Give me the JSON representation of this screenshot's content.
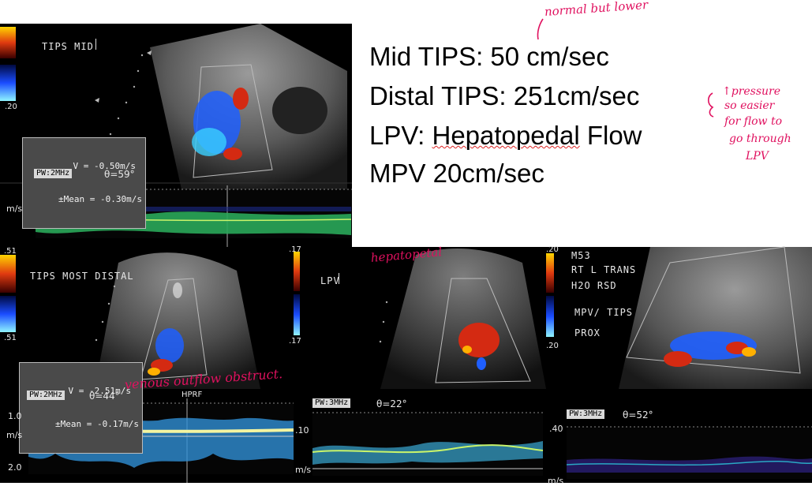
{
  "colors": {
    "annotation": "#e0115f",
    "doppler_red": "#d42a12",
    "doppler_blue": "#1f5fff",
    "spectral": "#41d46b"
  },
  "panel_top_left": {
    "label": "TIPS MID",
    "scale_bottom": ".20",
    "readout_v": "V = -0.50m/s",
    "readout_mean": "±Mean = -0.30m/s",
    "pw_tag": "PW:2MHz",
    "theta": "θ=59°",
    "axis_unit": "m/s"
  },
  "text_panel": {
    "line1": "Mid TIPS:  50 cm/sec",
    "line2": "Distal TIPS: 251cm/sec",
    "line3_prefix": "LPV: ",
    "line3_underlined": "Hepatopedal",
    "line3_suffix": " Flow",
    "line4": "MPV 20cm/sec"
  },
  "annotations": {
    "normal": "normal but lower",
    "pressure_1": "↑pressure",
    "pressure_2": "so easier",
    "pressure_3": "for flow to",
    "pressure_4": "go through",
    "pressure_5": "LPV",
    "hepatopetal": "hepatopetal",
    "venous": "venous outflow obstruct."
  },
  "panel_bottom_left": {
    "label": "TIPS MOST DISTAL",
    "scale_top": ".51",
    "scale_bottom": ".51",
    "readout_v": "V = -2.51m/s",
    "readout_mean": "±Mean = -0.17m/s",
    "pw_tag": "PW:2MHz",
    "theta": "θ=44°",
    "hprf": "HPRF",
    "axis_top": "1.0",
    "axis_unit": "m/s",
    "axis_bottom": "2.0"
  },
  "panel_bottom_mid": {
    "label": "LPV",
    "scale_top": ".17",
    "scale_bottom": ".17",
    "pw_tag": "PW:3MHz",
    "theta": "θ=22°",
    "axis_top": ".10",
    "axis_unit": "m/s"
  },
  "panel_bottom_right": {
    "scale_top": ".20",
    "scale_bottom": ".20",
    "label_lines": [
      "M53",
      "RT L TRANS",
      "H2O RSD",
      "MPV/ TIPS",
      "PROX"
    ],
    "pw_tag": "PW:3MHz",
    "theta": "θ=52°",
    "axis_top": ".40",
    "axis_unit": "m/s"
  }
}
